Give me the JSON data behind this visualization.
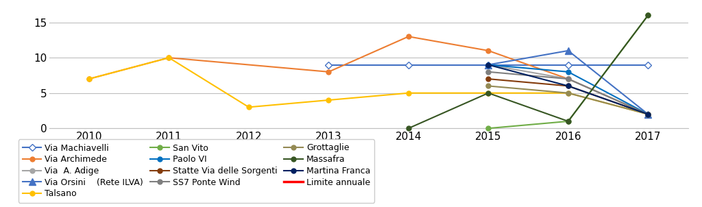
{
  "years": [
    2010,
    2011,
    2012,
    2013,
    2014,
    2015,
    2016,
    2017
  ],
  "series": {
    "Via Machiavelli": {
      "color": "#4472C4",
      "marker": "D",
      "markersize": 5,
      "linewidth": 1.5,
      "markerfacecolor": "white",
      "values": [
        null,
        null,
        null,
        9,
        9,
        9,
        9,
        9
      ]
    },
    "Via Archimede": {
      "color": "#ED7D31",
      "marker": "o",
      "markersize": 5,
      "linewidth": 1.5,
      "markerfacecolor": "#ED7D31",
      "values": [
        7,
        10,
        null,
        8,
        13,
        11,
        7,
        2
      ]
    },
    "Via  A. Adige": {
      "color": "#A5A5A5",
      "marker": "o",
      "markersize": 5,
      "linewidth": 1.5,
      "markerfacecolor": "#A5A5A5",
      "values": [
        null,
        null,
        null,
        null,
        null,
        9,
        7,
        2
      ]
    },
    "Via Orsini    (Rete ILVA)": {
      "color": "#4472C4",
      "marker": "^",
      "markersize": 7,
      "linewidth": 1.5,
      "markerfacecolor": "#4472C4",
      "values": [
        null,
        null,
        null,
        null,
        null,
        9,
        11,
        2
      ]
    },
    "Talsano": {
      "color": "#FFC000",
      "marker": "o",
      "markersize": 5,
      "linewidth": 1.5,
      "markerfacecolor": "#FFC000",
      "values": [
        7,
        10,
        3,
        4,
        5,
        5,
        5,
        2
      ]
    },
    "San Vito": {
      "color": "#70AD47",
      "marker": "o",
      "markersize": 5,
      "linewidth": 1.5,
      "markerfacecolor": "#70AD47",
      "values": [
        null,
        null,
        null,
        null,
        null,
        0,
        1,
        16
      ]
    },
    "Paolo VI": {
      "color": "#0070C0",
      "marker": "o",
      "markersize": 5,
      "linewidth": 1.5,
      "markerfacecolor": "#0070C0",
      "values": [
        null,
        null,
        null,
        null,
        null,
        9,
        8,
        2
      ]
    },
    "Statte Via delle Sorgenti": {
      "color": "#843C0C",
      "marker": "o",
      "markersize": 5,
      "linewidth": 1.5,
      "markerfacecolor": "#843C0C",
      "values": [
        null,
        null,
        null,
        null,
        null,
        7,
        6,
        2
      ]
    },
    "SS7 Ponte Wind": {
      "color": "#7F7F7F",
      "marker": "o",
      "markersize": 5,
      "linewidth": 1.5,
      "markerfacecolor": "#7F7F7F",
      "values": [
        null,
        null,
        null,
        null,
        null,
        8,
        7,
        2
      ]
    },
    "Grottaglie": {
      "color": "#948A54",
      "marker": "o",
      "markersize": 5,
      "linewidth": 1.5,
      "markerfacecolor": "#948A54",
      "values": [
        null,
        null,
        null,
        null,
        null,
        6,
        5,
        2
      ]
    },
    "Massafra": {
      "color": "#375623",
      "marker": "o",
      "markersize": 5,
      "linewidth": 1.5,
      "markerfacecolor": "#375623",
      "values": [
        null,
        null,
        null,
        null,
        0,
        5,
        1,
        16
      ]
    },
    "Martina Franca": {
      "color": "#002060",
      "marker": "o",
      "markersize": 5,
      "linewidth": 1.5,
      "markerfacecolor": "#002060",
      "values": [
        null,
        null,
        null,
        null,
        null,
        9,
        6,
        2
      ]
    }
  },
  "limite_annuale": {
    "color": "#FF0000",
    "linewidth": 2.5
  },
  "ylim": [
    0,
    17
  ],
  "yticks": [
    0,
    5,
    10,
    15
  ],
  "background_color": "#FFFFFF",
  "legend_order": [
    "Via Machiavelli",
    "Via Archimede",
    "Via  A. Adige",
    "Via Orsini    (Rete ILVA)",
    "Talsano",
    "San Vito",
    "Paolo VI",
    "Statte Via delle Sorgenti",
    "SS7 Ponte Wind",
    "Grottaglie",
    "Massafra",
    "Martina Franca",
    "Limite annuale"
  ]
}
